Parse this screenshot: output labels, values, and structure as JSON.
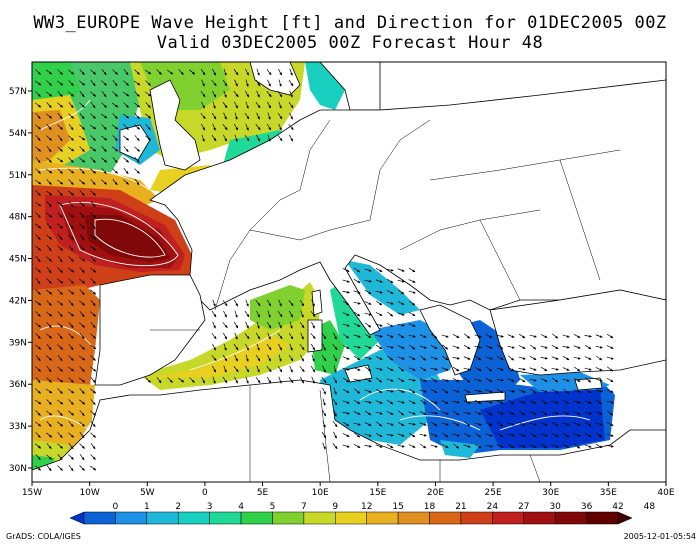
{
  "title_line1": "WW3_EUROPE Wave Height [ft] and Direction for 01DEC2005 00Z",
  "title_line2": "Valid 03DEC2005 00Z      Forecast Hour 48",
  "lon_labels": [
    "15W",
    "10W",
    "5W",
    "0",
    "5E",
    "10E",
    "15E",
    "20E",
    "25E",
    "30E",
    "35E",
    "40E"
  ],
  "lat_labels": [
    "57N",
    "54N",
    "51N",
    "48N",
    "45N",
    "42N",
    "39N",
    "36N",
    "33N",
    "30N"
  ],
  "colorbar": {
    "labels": [
      "0",
      "1",
      "2",
      "3",
      "4",
      "5",
      "7",
      "9",
      "12",
      "15",
      "18",
      "21",
      "24",
      "27",
      "30",
      "36",
      "42",
      "48"
    ],
    "colors": [
      "#0033cc",
      "#0a62d6",
      "#1e90e6",
      "#20b8d8",
      "#18cfc0",
      "#20d898",
      "#30d04a",
      "#80d030",
      "#c8d828",
      "#e8d020",
      "#e8b020",
      "#e09020",
      "#d86818",
      "#d04018",
      "#c02020",
      "#a01010",
      "#800808",
      "#600000",
      "#400000"
    ]
  },
  "credit_left": "GrADS: COLA/IGES",
  "credit_right": "2005-12-01-05:54"
}
